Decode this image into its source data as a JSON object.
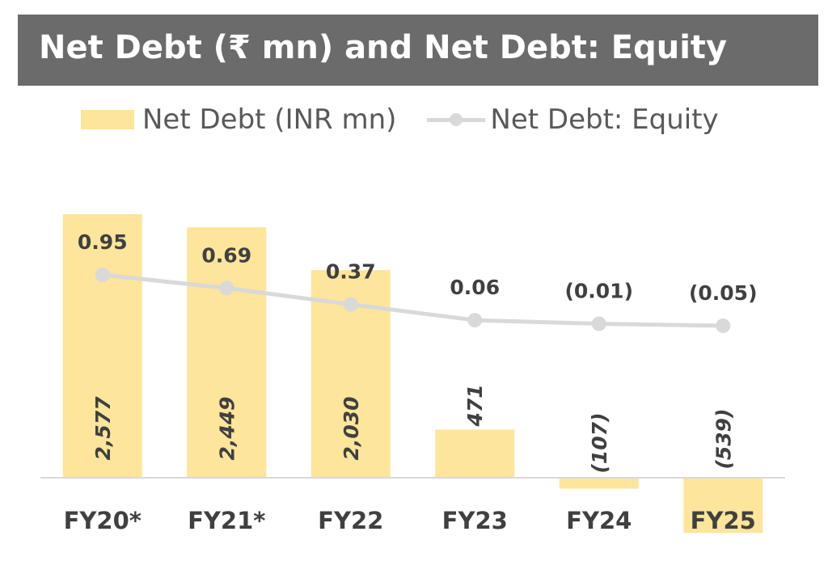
{
  "title": "Net Debt (₹ mn) and Net Debt: Equity",
  "colors": {
    "title_background": "#6b6b6b",
    "bar": "#fde59b",
    "line": "#d9d9d9",
    "label_text": "#404040",
    "legend_text": "#595959"
  },
  "chart_data": {
    "type": "bar",
    "title": "Net Debt (₹ mn) and Net Debt: Equity",
    "categories": [
      "FY20*",
      "FY21*",
      "FY22",
      "FY23",
      "FY24",
      "FY25"
    ],
    "series": [
      {
        "name": "Net Debt (INR mn)",
        "type": "bar",
        "values": [
          2577,
          2449,
          2030,
          471,
          -107,
          -539
        ],
        "labels": [
          "2,577",
          "2,449",
          "2,030",
          "471",
          "(107)",
          "(539)"
        ]
      },
      {
        "name": "Net Debt: Equity",
        "type": "line",
        "values": [
          0.95,
          0.69,
          0.37,
          0.06,
          -0.01,
          -0.05
        ],
        "labels": [
          "0.95",
          "0.69",
          "0.37",
          "0.06",
          "(0.01)",
          "(0.05)"
        ]
      }
    ],
    "legend": "top",
    "grid": false
  }
}
